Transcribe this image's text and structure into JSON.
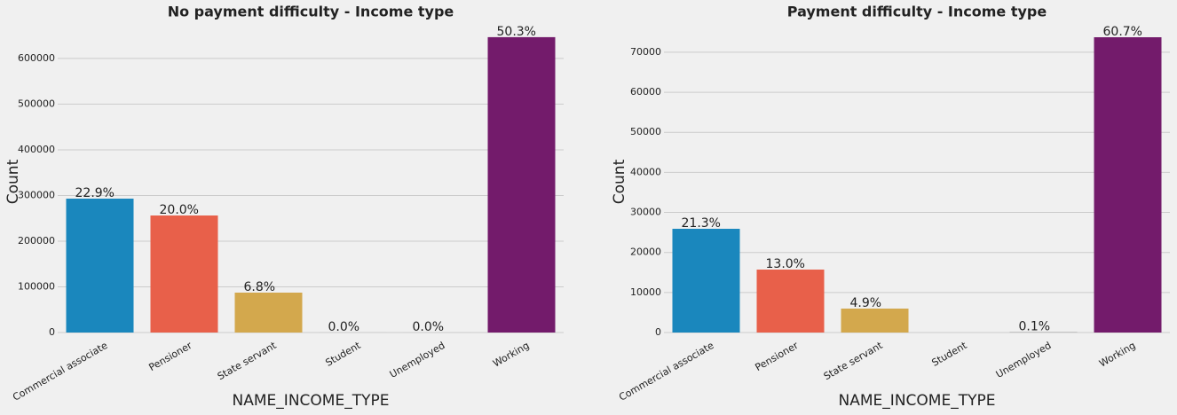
{
  "chart_data": [
    {
      "type": "bar",
      "title": "No payment difficulty - Income type",
      "categories": [
        "Commercial associate",
        "Pensioner",
        "State servant",
        "Student",
        "Unemployed",
        "Working"
      ],
      "values": [
        293100,
        256200,
        87350,
        18,
        22,
        646600
      ],
      "percent_labels": [
        "22.9%",
        "20.0%",
        "6.8%",
        "0.0%",
        "0.0%",
        "50.3%"
      ],
      "colors": [
        "#1a87bd",
        "#e8604a",
        "#d3a84d",
        "#6d904f",
        "#8b8b8b",
        "#731b6b"
      ],
      "ylim": [
        0,
        660000
      ],
      "yticks": [
        0,
        100000,
        200000,
        300000,
        400000,
        500000,
        600000
      ],
      "xlabel": "NAME_INCOME_TYPE",
      "ylabel": "Count",
      "grid": true
    },
    {
      "type": "bar",
      "title": "Payment difficulty - Income type",
      "categories": [
        "Commercial associate",
        "Pensioner",
        "State servant",
        "Student",
        "Unemployed",
        "Working"
      ],
      "values": [
        25910,
        15720,
        5980,
        null,
        90,
        73750
      ],
      "percent_labels": [
        "21.3%",
        "13.0%",
        "4.9%",
        null,
        "0.1%",
        "60.7%"
      ],
      "colors": [
        "#1a87bd",
        "#e8604a",
        "#d3a84d",
        "#6d904f",
        "#8b8b8b",
        "#731b6b"
      ],
      "ylim": [
        0,
        75300
      ],
      "yticks": [
        0,
        10000,
        20000,
        30000,
        40000,
        50000,
        60000,
        70000
      ],
      "xlabel": "NAME_INCOME_TYPE",
      "ylabel": "Count",
      "grid": true
    }
  ]
}
